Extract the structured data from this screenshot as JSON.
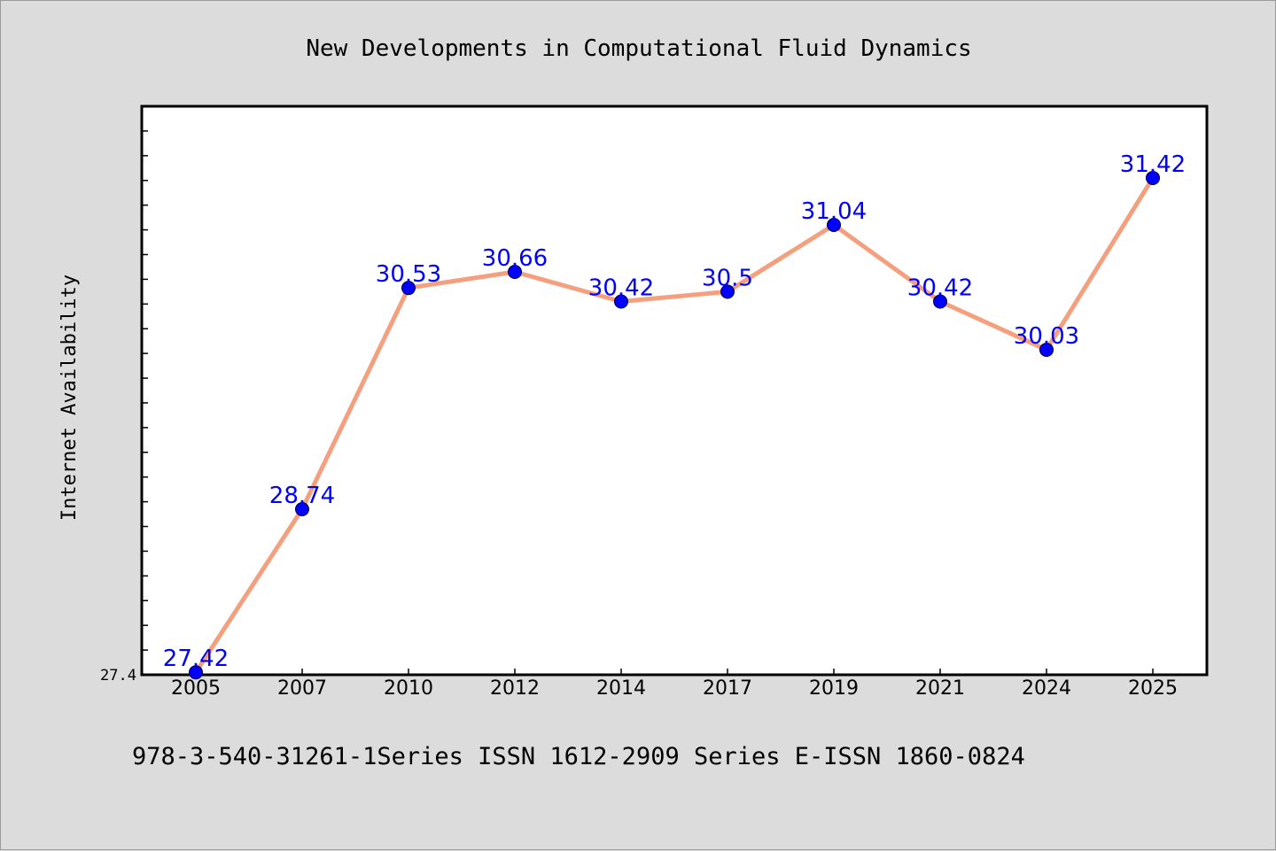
{
  "colors": {
    "background": "#dcdcdc",
    "plot_background": "#ffffff",
    "line": "#f4a07f",
    "marker": "#0000ff",
    "data_label": "#0000ff"
  },
  "footer": "978-3-540-31261-1Series ISSN 1612-2909 Series E-ISSN 1860-0824",
  "chart_data": {
    "type": "line",
    "title": "New Developments in Computational Fluid Dynamics",
    "xlabel": "",
    "ylabel": "Internet Availability",
    "categories": [
      "2005",
      "2007",
      "2010",
      "2012",
      "2014",
      "2017",
      "2019",
      "2021",
      "2024",
      "2025"
    ],
    "series": [
      {
        "values": [
          27.42,
          28.74,
          30.53,
          30.66,
          30.42,
          30.5,
          31.04,
          30.42,
          30.03,
          31.42
        ],
        "labels": [
          "27.42",
          "28.74",
          "30.53",
          "30.66",
          "30.42",
          "30.5",
          "31.04",
          "30.42",
          "30.03",
          "31.42"
        ]
      }
    ],
    "ylim": [
      27.4,
      32.0
    ],
    "yticks": [
      "27.4"
    ],
    "grid": false,
    "legend": "none"
  }
}
